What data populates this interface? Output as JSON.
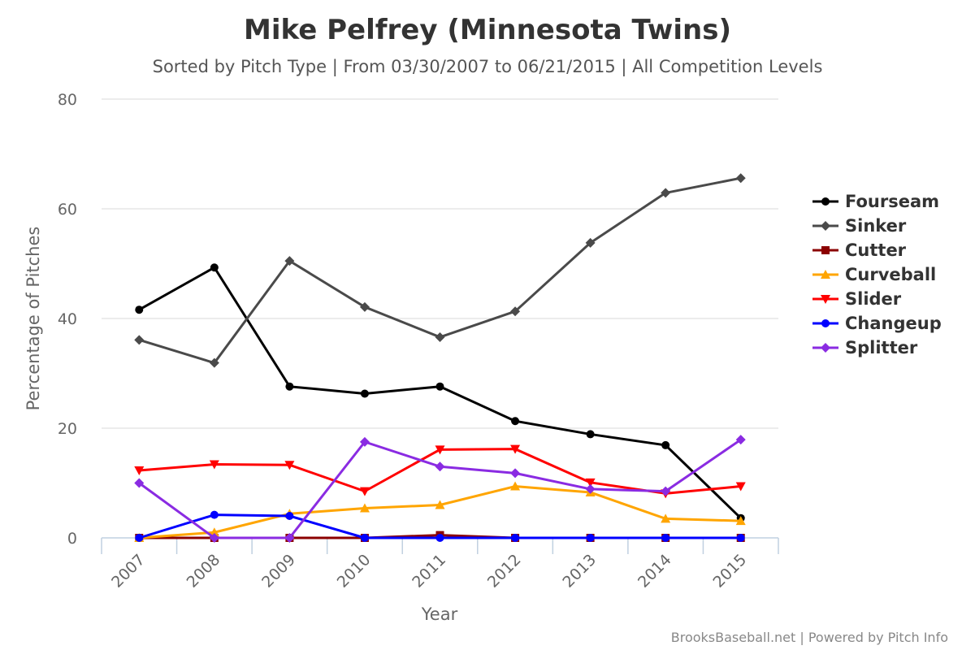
{
  "chart_data": {
    "type": "line",
    "title": "Mike Pelfrey (Minnesota Twins)",
    "subtitle": "Sorted by Pitch Type | From 03/30/2007 to 06/21/2015 | All Competition Levels",
    "xlabel": "Year",
    "ylabel": "Percentage of Pitches",
    "categories": [
      "2007",
      "2008",
      "2009",
      "2010",
      "2011",
      "2012",
      "2013",
      "2014",
      "2015"
    ],
    "ylim": [
      0,
      80
    ],
    "yticks": [
      "0",
      "20",
      "40",
      "60",
      "80"
    ],
    "grid": true,
    "legend_position": "right",
    "series": [
      {
        "name": "Fourseam",
        "color": "#000000",
        "marker": "circle",
        "values": [
          41.6,
          49.3,
          27.6,
          26.3,
          27.6,
          21.3,
          18.9,
          16.9,
          3.6
        ]
      },
      {
        "name": "Sinker",
        "color": "#4a4a4a",
        "marker": "diamond",
        "values": [
          36.1,
          31.9,
          50.5,
          42.1,
          36.6,
          41.3,
          53.8,
          62.9,
          65.6
        ]
      },
      {
        "name": "Cutter",
        "color": "#8b0000",
        "marker": "square",
        "values": [
          0,
          0,
          0,
          0,
          0.5,
          0,
          0,
          0,
          0
        ]
      },
      {
        "name": "Curveball",
        "color": "#ffa500",
        "marker": "triangle",
        "values": [
          0,
          1.0,
          4.4,
          5.4,
          6.0,
          9.4,
          8.3,
          3.5,
          3.1
        ]
      },
      {
        "name": "Slider",
        "color": "#ff0000",
        "marker": "triangle-down",
        "values": [
          12.3,
          13.4,
          13.3,
          8.5,
          16.1,
          16.2,
          10.1,
          8.1,
          9.4
        ]
      },
      {
        "name": "Changeup",
        "color": "#0000ff",
        "marker": "circle",
        "values": [
          0,
          4.2,
          4.0,
          0,
          0,
          0,
          0,
          0,
          0
        ]
      },
      {
        "name": "Splitter",
        "color": "#8a2be2",
        "marker": "diamond",
        "values": [
          10.0,
          0,
          0,
          17.5,
          13.0,
          11.8,
          8.9,
          8.5,
          17.9
        ]
      }
    ]
  },
  "credit": "BrooksBaseball.net | Powered by Pitch Info"
}
